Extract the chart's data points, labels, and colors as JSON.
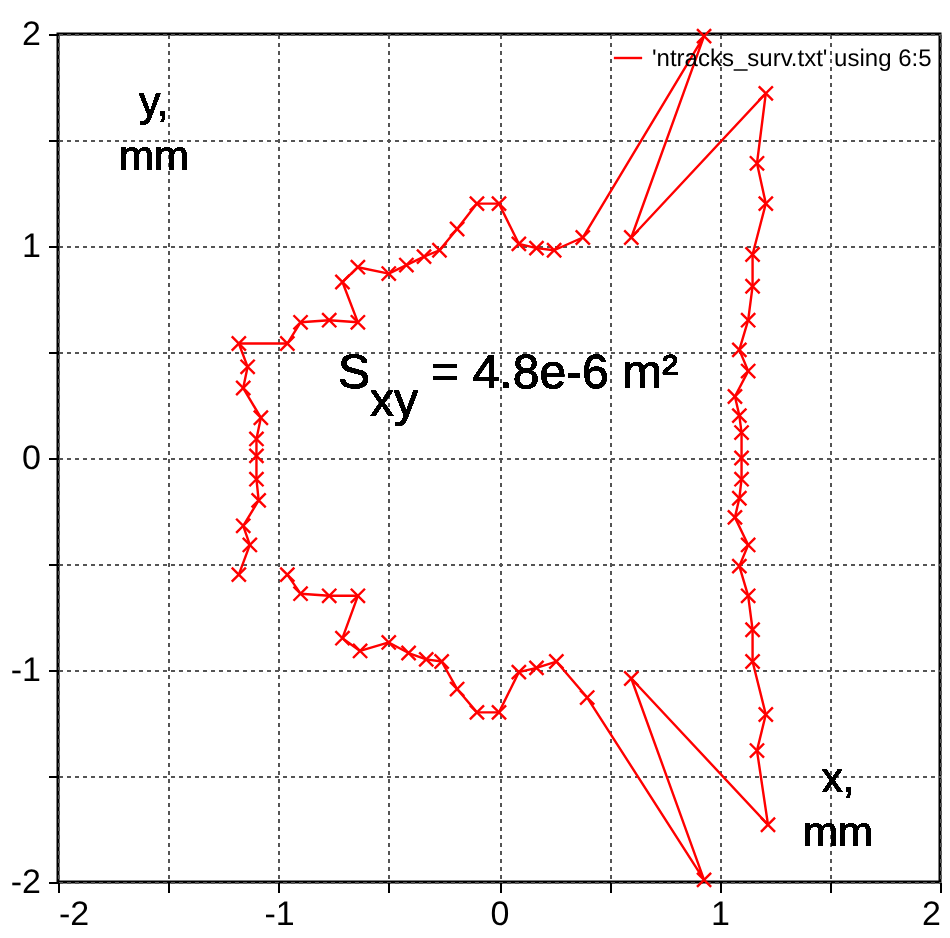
{
  "chart_data": {
    "type": "line",
    "xlabel": "x,\nmm",
    "ylabel": "y,\nmm",
    "annotations": [
      "S$_{xy}$ = 4.8e-6 m²"
    ],
    "series": [
      {
        "name": "'ntracks_surv.txt' using 6:5",
        "color": "#ff0000",
        "x": [
          -1.18,
          -1.13,
          -1.16,
          -1.09,
          -1.1,
          -1.1,
          -1.1,
          -1.08,
          -1.16,
          -1.14,
          -1.18,
          -0.96,
          -0.9,
          -0.77,
          -0.64,
          -0.71,
          -0.64,
          -0.5,
          -0.42,
          -0.34,
          -0.27,
          -0.19,
          -0.1,
          0,
          0.09,
          0.17,
          0.25,
          0.38,
          0.93,
          0.6,
          1.21,
          1.17,
          1.21,
          1.15,
          1.15,
          1.13,
          1.09,
          1.13,
          1.07,
          1.09,
          1.1,
          1.1,
          1.1,
          1.09,
          1.07,
          1.13,
          1.09,
          1.13,
          1.15,
          1.15,
          1.21,
          1.17,
          1.22,
          0.6,
          0.93,
          0.4,
          0.26,
          0.17,
          0.09,
          0,
          -0.1,
          -0.19,
          -0.26,
          -0.33,
          -0.41,
          -0.5,
          -0.63,
          -0.71,
          -0.64,
          -0.77,
          -0.9,
          -0.96
        ],
        "values": [
          -0.55,
          -0.41,
          -0.32,
          -0.2,
          -0.1,
          0.01,
          0.09,
          0.19,
          0.33,
          0.43,
          0.54,
          0.54,
          0.64,
          0.65,
          0.64,
          0.83,
          0.9,
          0.87,
          0.91,
          0.95,
          0.98,
          1.08,
          1.2,
          1.2,
          1.01,
          0.99,
          0.98,
          1.04,
          1.99,
          1.04,
          1.72,
          1.39,
          1.2,
          0.96,
          0.81,
          0.65,
          0.51,
          0.41,
          0.29,
          0.2,
          0.12,
          0,
          -0.1,
          -0.19,
          -0.28,
          -0.41,
          -0.51,
          -0.65,
          -0.81,
          -0.96,
          -1.21,
          -1.38,
          -1.73,
          -1.04,
          -1.99,
          -1.13,
          -0.96,
          -0.99,
          -1.01,
          -1.2,
          -1.2,
          -1.09,
          -0.96,
          -0.95,
          -0.92,
          -0.87,
          -0.91,
          -0.85,
          -0.65,
          -0.65,
          -0.64,
          -0.55
        ]
      }
    ],
    "xlim": [
      -2,
      2
    ],
    "ylim": [
      -2,
      2
    ],
    "xticks": [
      -2,
      {
        "value": -1.5,
        "label": null
      },
      -1,
      {
        "value": -0.5,
        "label": null
      },
      0,
      {
        "value": 0.5,
        "label": null
      },
      1,
      {
        "value": 1.5,
        "label": null
      },
      2
    ],
    "yticks": [
      -2,
      {
        "value": -1.5,
        "label": null
      },
      -1,
      {
        "value": -0.5,
        "label": null
      },
      0,
      {
        "value": 0.5,
        "label": null
      },
      1,
      {
        "value": 1.5,
        "label": null
      },
      2
    ],
    "grid": true,
    "legend": "top right",
    "marker": "cross",
    "line_style": "solid"
  }
}
